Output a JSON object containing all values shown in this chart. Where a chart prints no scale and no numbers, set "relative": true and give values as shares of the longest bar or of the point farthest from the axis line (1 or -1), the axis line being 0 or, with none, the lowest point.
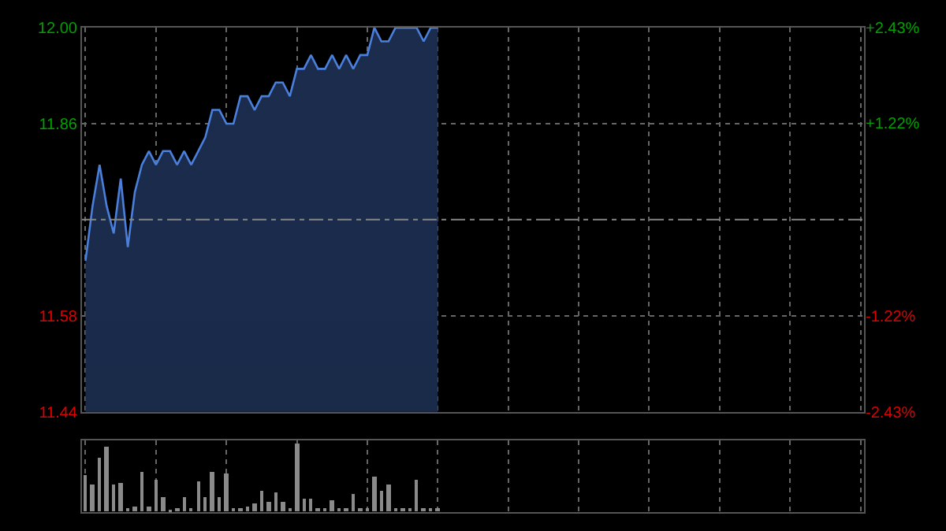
{
  "chart_data": [
    {
      "type": "area",
      "categories": [
        null,
        null,
        null,
        null,
        null,
        null,
        null,
        null,
        null,
        null,
        null,
        null,
        null,
        null,
        null,
        null,
        null,
        null,
        null,
        null,
        null,
        null,
        null,
        null,
        null,
        null,
        null,
        null,
        null,
        null,
        null,
        null,
        null,
        null,
        null,
        null,
        null,
        null,
        null,
        null,
        null,
        null,
        null,
        null,
        null,
        null,
        null,
        null,
        null,
        null,
        null,
        null,
        null,
        null,
        null,
        null,
        null,
        null,
        null,
        null,
        null,
        null,
        null,
        null,
        null,
        null,
        null,
        null,
        null,
        null,
        null,
        null,
        null,
        null,
        null,
        null,
        null,
        null,
        null,
        null,
        null,
        null,
        null,
        null,
        null,
        null,
        null,
        null,
        null,
        null,
        null,
        null,
        null,
        null,
        null,
        null,
        null,
        null,
        null,
        null,
        null,
        null,
        null,
        null,
        null,
        null,
        null,
        null,
        null,
        null,
        null
      ],
      "series": [
        {
          "color": "#4a80dc",
          "values": [
            11.66,
            11.74,
            11.8,
            11.74,
            11.7,
            11.78,
            11.68,
            11.76,
            11.8,
            11.82,
            11.8,
            11.82,
            11.82,
            11.8,
            11.82,
            11.8,
            11.82,
            11.84,
            11.88,
            11.88,
            11.86,
            11.86,
            11.9,
            11.9,
            11.88,
            11.9,
            11.9,
            11.92,
            11.92,
            11.9,
            11.94,
            11.94,
            11.96,
            11.94,
            11.94,
            11.96,
            11.94,
            11.96,
            11.94,
            11.96,
            11.96,
            12.0,
            11.98,
            11.98,
            12.0,
            12.0,
            12.0,
            12.0,
            11.98,
            12.0,
            12.0,
            null,
            null,
            null,
            null,
            null,
            null,
            null,
            null,
            null,
            null,
            null,
            null,
            null,
            null,
            null,
            null,
            null,
            null,
            null,
            null,
            null,
            null,
            null,
            null,
            null,
            null,
            null,
            null,
            null,
            null,
            null,
            null,
            null,
            null,
            null,
            null,
            null,
            null,
            null,
            null,
            null,
            null,
            null,
            null,
            null,
            null,
            null,
            null,
            null,
            null,
            null,
            null,
            null,
            null,
            null,
            null,
            null,
            null,
            null,
            null
          ]
        }
      ],
      "ylim": [
        11.44,
        12.0
      ],
      "yticks": [
        {
          "value": 11.44,
          "label": "11.44"
        },
        {
          "value": 11.58,
          "label": "11.58"
        },
        {
          "value": 11.86,
          "label": "11.86"
        },
        {
          "value": 12.0,
          "label": "12.00"
        }
      ],
      "y2lim": [
        -2.43,
        2.43
      ],
      "y2ticks": [
        {
          "value": -2.43,
          "label": "-2.43%"
        },
        {
          "value": -1.22,
          "label": "-1.22%"
        },
        {
          "value": 1.22,
          "label": "+1.22%"
        },
        {
          "value": 2.43,
          "label": "+2.43%"
        }
      ],
      "ref_lines": [
        {
          "axis": "y",
          "value": 11.72,
          "color": "#888888",
          "line_style": "dashed"
        }
      ],
      "grid": true
    },
    {
      "type": "bar",
      "relative": true,
      "categories": [
        null,
        null,
        null,
        null,
        null,
        null,
        null,
        null,
        null,
        null,
        null,
        null,
        null,
        null,
        null,
        null,
        null,
        null,
        null,
        null,
        null,
        null,
        null,
        null,
        null,
        null,
        null,
        null,
        null,
        null,
        null,
        null,
        null,
        null,
        null,
        null,
        null,
        null,
        null,
        null,
        null,
        null,
        null,
        null,
        null,
        null,
        null,
        null,
        null,
        null,
        null,
        null,
        null,
        null,
        null,
        null,
        null,
        null,
        null,
        null,
        null,
        null,
        null,
        null,
        null,
        null,
        null,
        null,
        null,
        null,
        null,
        null,
        null,
        null,
        null,
        null,
        null,
        null,
        null,
        null,
        null,
        null,
        null,
        null,
        null,
        null,
        null,
        null,
        null,
        null,
        null,
        null,
        null,
        null,
        null,
        null,
        null,
        null,
        null,
        null,
        null,
        null,
        null,
        null,
        null,
        null,
        null,
        null,
        null,
        null,
        null
      ],
      "series": [
        {
          "color": "#8a8a8a",
          "values": [
            0.54,
            0.4,
            0.79,
            0.96,
            0.4,
            0.42,
            0.05,
            0.08,
            0.58,
            0.08,
            0.47,
            0.23,
            0.03,
            0.05,
            0.23,
            0.05,
            0.44,
            0.23,
            0.6,
            0.23,
            0.56,
            0.05,
            0.05,
            0.08,
            0.12,
            0.32,
            0.15,
            0.3,
            0.15,
            0.06,
            1.0,
            0.19,
            0.2,
            0.05,
            0.06,
            0.18,
            0.05,
            0.05,
            0.26,
            0.05,
            0.05,
            0.51,
            0.31,
            0.4,
            0.05,
            0.05,
            0.06,
            0.47,
            0.05,
            0.05,
            0.05,
            null,
            null,
            null,
            null,
            null,
            null,
            null,
            null,
            null,
            null,
            null,
            null,
            null,
            null,
            null,
            null,
            null,
            null,
            null,
            null,
            null,
            null,
            null,
            null,
            null,
            null,
            null,
            null,
            null,
            null,
            null,
            null,
            null,
            null,
            null,
            null,
            null,
            null,
            null,
            null,
            null,
            null,
            null,
            null,
            null,
            null,
            null,
            null,
            null,
            null,
            null,
            null,
            null,
            null,
            null,
            null,
            null,
            null,
            null,
            null
          ]
        }
      ],
      "grid": "x"
    }
  ]
}
